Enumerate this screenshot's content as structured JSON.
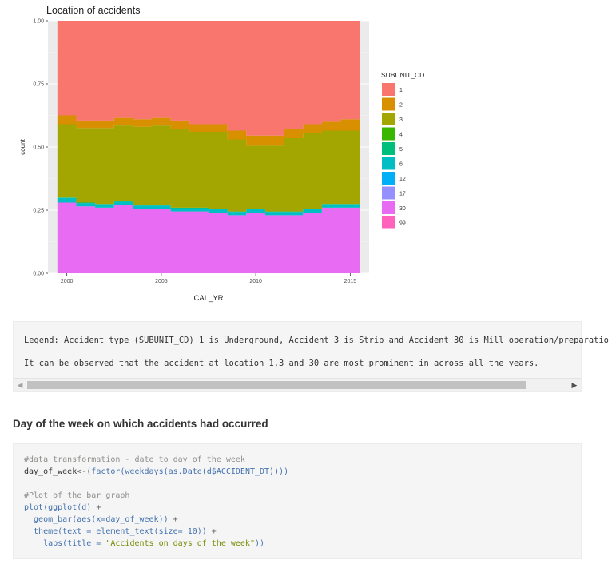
{
  "chart_data": {
    "type": "area",
    "title": "Location of accidents",
    "xlabel": "CAL_YR",
    "ylabel": "count",
    "xlim": [
      1999,
      2016
    ],
    "ylim": [
      0,
      1
    ],
    "x_ticks": [
      2000,
      2005,
      2010,
      2015
    ],
    "y_ticks": [
      0.0,
      0.25,
      0.5,
      0.75,
      1.0
    ],
    "y_tick_labels": [
      "0.00",
      "0.25",
      "0.50",
      "0.75",
      "1.00"
    ],
    "grid": true,
    "legend": {
      "title": "SUBUNIT_CD",
      "position": "right"
    },
    "x": [
      2000,
      2001,
      2002,
      2003,
      2004,
      2005,
      2006,
      2007,
      2008,
      2009,
      2010,
      2011,
      2012,
      2013,
      2014,
      2015
    ],
    "series": [
      {
        "name": "1",
        "color": "#F8766D",
        "values": [
          0.375,
          0.395,
          0.395,
          0.385,
          0.39,
          0.385,
          0.395,
          0.41,
          0.41,
          0.435,
          0.455,
          0.455,
          0.43,
          0.41,
          0.4,
          0.39
        ]
      },
      {
        "name": "2",
        "color": "#D89000",
        "values": [
          0.035,
          0.03,
          0.03,
          0.03,
          0.03,
          0.03,
          0.035,
          0.03,
          0.03,
          0.035,
          0.04,
          0.04,
          0.035,
          0.035,
          0.035,
          0.045
        ]
      },
      {
        "name": "3",
        "color": "#A3A500",
        "values": [
          0.29,
          0.295,
          0.3,
          0.3,
          0.31,
          0.315,
          0.31,
          0.3,
          0.305,
          0.285,
          0.25,
          0.26,
          0.29,
          0.3,
          0.29,
          0.29
        ]
      },
      {
        "name": "4",
        "color": "#39B600",
        "values": [
          0.0,
          0.0,
          0.0,
          0.0,
          0.0,
          0.0,
          0.0,
          0.0,
          0.0,
          0.0,
          0.0,
          0.0,
          0.0,
          0.0,
          0.0,
          0.0
        ]
      },
      {
        "name": "5",
        "color": "#00BF7D",
        "values": [
          0.002,
          0.002,
          0.002,
          0.002,
          0.002,
          0.002,
          0.002,
          0.002,
          0.002,
          0.002,
          0.002,
          0.002,
          0.002,
          0.002,
          0.002,
          0.002
        ]
      },
      {
        "name": "6",
        "color": "#00BFC4",
        "values": [
          0.018,
          0.013,
          0.013,
          0.013,
          0.013,
          0.013,
          0.013,
          0.013,
          0.013,
          0.013,
          0.013,
          0.013,
          0.013,
          0.013,
          0.013,
          0.013
        ]
      },
      {
        "name": "12",
        "color": "#00B0F6",
        "values": [
          0.0,
          0.0,
          0.0,
          0.0,
          0.0,
          0.0,
          0.0,
          0.0,
          0.0,
          0.0,
          0.0,
          0.0,
          0.0,
          0.0,
          0.0,
          0.0
        ]
      },
      {
        "name": "17",
        "color": "#9590FF",
        "values": [
          0.0,
          0.0,
          0.0,
          0.0,
          0.0,
          0.0,
          0.0,
          0.0,
          0.0,
          0.0,
          0.0,
          0.0,
          0.0,
          0.0,
          0.0,
          0.0
        ]
      },
      {
        "name": "30",
        "color": "#E76BF3",
        "values": [
          0.28,
          0.265,
          0.26,
          0.27,
          0.255,
          0.255,
          0.245,
          0.245,
          0.24,
          0.23,
          0.24,
          0.23,
          0.23,
          0.24,
          0.26,
          0.26
        ]
      },
      {
        "name": "99",
        "color": "#FF62BC",
        "values": [
          0.0,
          0.0,
          0.0,
          0.0,
          0.0,
          0.0,
          0.0,
          0.0,
          0.0,
          0.0,
          0.0,
          0.0,
          0.0,
          0.0,
          0.0,
          0.0
        ]
      }
    ]
  },
  "output": {
    "line1": "Legend: Accident type (SUBUNIT_CD) 1 is Underground, Accident 3 is Strip and Accident 30 is Mill operation/preparatio",
    "line2": "It can be observed that the accident at location 1,3 and 30 are most prominent in across all the years.",
    "scroll_left_icon": "◀",
    "scroll_right_icon": "▶"
  },
  "section": {
    "heading": "Day of the week on which accidents had occurred"
  },
  "code": {
    "l1": "#data transformation - date to day of the week",
    "l2a": "day_of_week",
    "l2b": "<-(",
    "l2c": "factor(weekdays(as.Date(d$ACCIDENT_DT))))",
    "l4": "#Plot of the bar graph",
    "l5a": "plot(ggplot(d)",
    "l5b": " +",
    "l6a": "  geom_bar(aes(x=day_of_week))",
    "l6b": " +",
    "l7a": "  theme(text = element_text(size= 10))",
    "l7b": " +",
    "l8a": "    labs(title = ",
    "l8b": "\"Accidents on days of the week\"",
    "l8c": "))"
  }
}
